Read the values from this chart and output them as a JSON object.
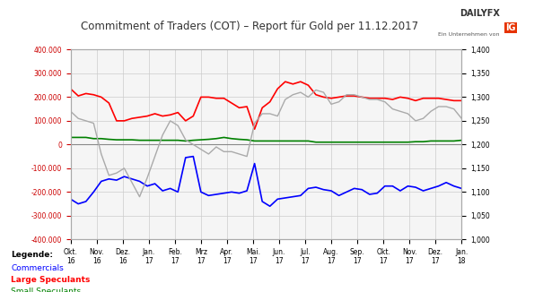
{
  "title": "Commitment of Traders (COT) – Report für Gold per 11.12.2017",
  "background_color": "#ffffff",
  "plot_bg_color": "#f5f5f5",
  "left_ylim": [
    -400000,
    400000
  ],
  "right_ylim": [
    1.0,
    1.4
  ],
  "left_yticks": [
    -400000,
    -300000,
    -200000,
    -100000,
    0,
    100000,
    200000,
    300000,
    400000
  ],
  "right_yticks": [
    1.0,
    1.05,
    1.1,
    1.15,
    1.2,
    1.25,
    1.3,
    1.35,
    1.4
  ],
  "x_labels": [
    "Okt.\n16",
    "Nov.\n16",
    "Dez.\n16",
    "Jan.\n17",
    "Feb.\n17",
    "Mrz\n17",
    "Apr.\n17",
    "Mai.\n17",
    "Jun.\n17",
    "Jul.\n17",
    "Aug.\n17",
    "Sep.\n17",
    "Okt.\n17",
    "Nov.\n17",
    "Dez.\n17",
    "Jan.\n18"
  ],
  "commercials_color": "#0000ff",
  "large_speculants_color": "#ff0000",
  "small_speculants_color": "#008000",
  "gold_color": "#aaaaaa",
  "legend_title": "Legende:",
  "legend_items": [
    "Commercials",
    "Large Speculants",
    "Small Speculants"
  ],
  "commercials": [
    -230000,
    -250000,
    -240000,
    -200000,
    -155000,
    -145000,
    -150000,
    -135000,
    -145000,
    -155000,
    -175000,
    -165000,
    -195000,
    -185000,
    -200000,
    -55000,
    -50000,
    -200000,
    -215000,
    -210000,
    -205000,
    -200000,
    -205000,
    -195000,
    -80000,
    -240000,
    -260000,
    -230000,
    -225000,
    -220000,
    -215000,
    -185000,
    -180000,
    -190000,
    -195000,
    -215000,
    -200000,
    -185000,
    -190000,
    -210000,
    -205000,
    -175000,
    -175000,
    -195000,
    -175000,
    -180000,
    -195000,
    -185000,
    -175000,
    -160000,
    -175000,
    -185000
  ],
  "large_speculants": [
    235000,
    205000,
    215000,
    210000,
    200000,
    175000,
    100000,
    100000,
    110000,
    115000,
    120000,
    130000,
    120000,
    125000,
    135000,
    100000,
    120000,
    200000,
    200000,
    195000,
    195000,
    175000,
    155000,
    160000,
    65000,
    155000,
    180000,
    235000,
    265000,
    255000,
    265000,
    250000,
    210000,
    200000,
    195000,
    200000,
    205000,
    205000,
    200000,
    195000,
    195000,
    195000,
    190000,
    200000,
    195000,
    185000,
    195000,
    195000,
    195000,
    190000,
    185000,
    185000
  ],
  "small_speculants": [
    30000,
    30000,
    30000,
    25000,
    25000,
    22000,
    20000,
    20000,
    20000,
    18000,
    18000,
    18000,
    18000,
    18000,
    18000,
    15000,
    18000,
    20000,
    22000,
    25000,
    30000,
    25000,
    22000,
    20000,
    15000,
    15000,
    15000,
    15000,
    15000,
    15000,
    15000,
    15000,
    10000,
    10000,
    10000,
    10000,
    10000,
    10000,
    10000,
    10000,
    10000,
    10000,
    10000,
    10000,
    10000,
    12000,
    12000,
    15000,
    15000,
    15000,
    15000,
    18000
  ],
  "gold_price": [
    1.27,
    1.255,
    1.25,
    1.245,
    1.18,
    1.135,
    1.14,
    1.15,
    1.12,
    1.09,
    1.13,
    1.175,
    1.22,
    1.25,
    1.24,
    1.21,
    1.2,
    1.19,
    1.18,
    1.195,
    1.185,
    1.185,
    1.18,
    1.175,
    1.245,
    1.265,
    1.265,
    1.26,
    1.295,
    1.305,
    1.31,
    1.3,
    1.315,
    1.31,
    1.285,
    1.29,
    1.305,
    1.305,
    1.3,
    1.295,
    1.295,
    1.29,
    1.275,
    1.27,
    1.265,
    1.25,
    1.255,
    1.27,
    1.28,
    1.28,
    1.275,
    1.255
  ]
}
